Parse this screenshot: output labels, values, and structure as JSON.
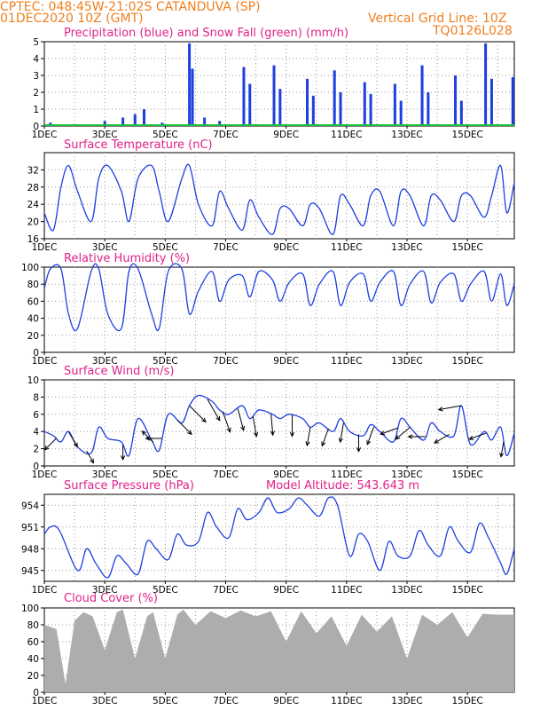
{
  "header": {
    "station_line": "CPTEC:   048:45W-21:02S   CATANDUVA (SP)",
    "run_line": "01DEC2020 10Z (GMT)",
    "grid_note": "Vertical Grid Line: 10Z",
    "model_code": "TQ0126L028",
    "model_altitude": "Model Altitude: 543.643 m"
  },
  "x_axis": {
    "labels": [
      "1DEC",
      "3DEC",
      "5DEC",
      "7DEC",
      "9DEC",
      "11DEC",
      "13DEC",
      "15DEC"
    ],
    "day_start": 1,
    "day_end": 16.55
  },
  "chart_data": [
    {
      "id": "precip",
      "type": "bar",
      "title": "Precipitation (blue) and Snow Fall (green) (mm/h)",
      "ylim": [
        0,
        5
      ],
      "yticks": [
        "0",
        "1",
        "2",
        "3",
        "4",
        "5"
      ],
      "grid": true,
      "colors": {
        "rain": "#1e3fe0",
        "snow": "#1fbf3f"
      },
      "series": [
        {
          "name": "Precipitation",
          "events": [
            {
              "day": 1.2,
              "value": 0.2
            },
            {
              "day": 2.0,
              "value": 0.1
            },
            {
              "day": 2.3,
              "value": 0.1
            },
            {
              "day": 3.0,
              "value": 0.3
            },
            {
              "day": 3.6,
              "value": 0.5
            },
            {
              "day": 4.0,
              "value": 0.7
            },
            {
              "day": 4.3,
              "value": 1.0
            },
            {
              "day": 4.9,
              "value": 0.2
            },
            {
              "day": 5.8,
              "value": 4.9
            },
            {
              "day": 5.9,
              "value": 3.4
            },
            {
              "day": 6.3,
              "value": 0.5
            },
            {
              "day": 6.8,
              "value": 0.3
            },
            {
              "day": 7.6,
              "value": 3.5
            },
            {
              "day": 7.8,
              "value": 2.5
            },
            {
              "day": 8.6,
              "value": 3.6
            },
            {
              "day": 8.8,
              "value": 2.2
            },
            {
              "day": 9.7,
              "value": 2.8
            },
            {
              "day": 9.9,
              "value": 1.8
            },
            {
              "day": 10.6,
              "value": 3.3
            },
            {
              "day": 10.8,
              "value": 2.0
            },
            {
              "day": 11.6,
              "value": 2.6
            },
            {
              "day": 11.8,
              "value": 1.9
            },
            {
              "day": 12.6,
              "value": 2.5
            },
            {
              "day": 12.8,
              "value": 1.5
            },
            {
              "day": 13.5,
              "value": 3.6
            },
            {
              "day": 13.7,
              "value": 2.0
            },
            {
              "day": 14.6,
              "value": 3.0
            },
            {
              "day": 14.8,
              "value": 1.5
            },
            {
              "day": 15.6,
              "value": 4.9
            },
            {
              "day": 15.8,
              "value": 2.8
            },
            {
              "day": 16.5,
              "value": 2.9
            }
          ]
        },
        {
          "name": "Snow Fall",
          "values": [
            0
          ]
        }
      ]
    },
    {
      "id": "temp",
      "type": "line",
      "title": "Surface Temperature (nC)",
      "ylim": [
        16,
        36
      ],
      "yticks": [
        "16",
        "20",
        "24",
        "28",
        "32"
      ],
      "grid": true,
      "colors": {
        "line": "#1e3fe0"
      },
      "series": [
        {
          "name": "Temperature",
          "days": [
            1,
            1.3,
            1.55,
            1.8,
            2.1,
            2.55,
            2.8,
            3.1,
            3.55,
            3.8,
            4.1,
            4.55,
            4.8,
            5.1,
            5.55,
            5.8,
            6.1,
            6.55,
            6.8,
            7.1,
            7.55,
            7.8,
            8.1,
            8.55,
            8.8,
            9.1,
            9.55,
            9.8,
            10.1,
            10.55,
            10.8,
            11.1,
            11.55,
            11.8,
            12.1,
            12.55,
            12.8,
            13.1,
            13.55,
            13.8,
            14.1,
            14.55,
            14.8,
            15.1,
            15.55,
            15.8,
            16.1,
            16.3,
            16.55
          ],
          "values": [
            22,
            18,
            28,
            33,
            27,
            20,
            30,
            33,
            27,
            20,
            30,
            33,
            27,
            20,
            30,
            33,
            24,
            19,
            27,
            23,
            18,
            25,
            21,
            17,
            23,
            23,
            19,
            24,
            23,
            17,
            26,
            24,
            19,
            26,
            27,
            19,
            27,
            26,
            19,
            26,
            25,
            20,
            26,
            26,
            21,
            26,
            33,
            22,
            29
          ]
        }
      ]
    },
    {
      "id": "rh",
      "type": "line",
      "title": "Relative Humidity (%)",
      "ylim": [
        0,
        100
      ],
      "yticks": [
        "0",
        "20",
        "40",
        "60",
        "80",
        "100"
      ],
      "grid": true,
      "colors": {
        "line": "#1e3fe0"
      },
      "series": [
        {
          "name": "Relative Humidity",
          "days": [
            1,
            1.2,
            1.55,
            1.8,
            2.1,
            2.55,
            2.8,
            3.1,
            3.55,
            3.8,
            4.1,
            4.55,
            4.8,
            5.1,
            5.55,
            5.8,
            6.1,
            6.55,
            6.8,
            7.1,
            7.55,
            7.8,
            8.1,
            8.55,
            8.8,
            9.1,
            9.55,
            9.8,
            10.1,
            10.55,
            10.8,
            11.1,
            11.55,
            11.8,
            12.1,
            12.55,
            12.8,
            13.1,
            13.55,
            13.8,
            14.1,
            14.55,
            14.8,
            15.1,
            15.55,
            15.8,
            16.1,
            16.3,
            16.55
          ],
          "values": [
            75,
            98,
            98,
            45,
            28,
            95,
            98,
            45,
            28,
            95,
            98,
            45,
            28,
            95,
            98,
            45,
            72,
            95,
            60,
            85,
            90,
            65,
            95,
            85,
            60,
            82,
            92,
            55,
            80,
            95,
            55,
            82,
            92,
            60,
            82,
            95,
            55,
            80,
            95,
            58,
            82,
            92,
            60,
            80,
            95,
            60,
            92,
            55,
            80
          ]
        }
      ]
    },
    {
      "id": "wind",
      "type": "line",
      "title": "Surface Wind (m/s)",
      "ylim": [
        0,
        10
      ],
      "yticks": [
        "0",
        "2",
        "4",
        "6",
        "8",
        "10"
      ],
      "grid": true,
      "colors": {
        "line": "#1e3fe0",
        "arrows": "#000000"
      },
      "series": [
        {
          "name": "Wind speed",
          "days": [
            1,
            1.3,
            1.55,
            1.8,
            2.1,
            2.55,
            2.8,
            3.1,
            3.55,
            3.8,
            4.1,
            4.55,
            4.8,
            5.1,
            5.55,
            5.8,
            6.1,
            6.55,
            6.8,
            7.1,
            7.55,
            7.8,
            8.1,
            8.55,
            8.8,
            9.1,
            9.55,
            9.8,
            10.1,
            10.55,
            10.8,
            11.1,
            11.55,
            11.8,
            12.1,
            12.55,
            12.8,
            13.1,
            13.55,
            13.8,
            14.1,
            14.55,
            14.8,
            15.1,
            15.55,
            15.8,
            16.1,
            16.3,
            16.55
          ],
          "values": [
            4,
            3.5,
            2.8,
            4,
            2.2,
            1.5,
            4.5,
            3.2,
            2.8,
            1.2,
            5.5,
            3,
            1.8,
            6,
            5,
            7,
            8.2,
            7.5,
            6.5,
            6,
            7,
            5.5,
            6.5,
            6,
            5.5,
            6,
            5.5,
            4.5,
            5,
            4,
            5.5,
            4,
            3.5,
            4.8,
            4,
            2.8,
            5.5,
            4.5,
            3,
            5,
            4,
            3.5,
            7,
            2.5,
            4,
            3,
            4.5,
            1.2,
            3.8
          ]
        }
      ],
      "arrows": [
        {
          "day": 1.4,
          "dir": 225
        },
        {
          "day": 1.8,
          "dir": 300
        },
        {
          "day": 2.4,
          "dir": 300
        },
        {
          "day": 3.6,
          "dir": 270
        },
        {
          "day": 4.6,
          "dir": 135
        },
        {
          "day": 4.9,
          "dir": 180
        },
        {
          "day": 5.4,
          "dir": 315
        },
        {
          "day": 5.8,
          "dir": 315
        },
        {
          "day": 6.4,
          "dir": 300
        },
        {
          "day": 6.9,
          "dir": 290
        },
        {
          "day": 7.4,
          "dir": 285
        },
        {
          "day": 7.9,
          "dir": 280
        },
        {
          "day": 8.5,
          "dir": 275
        },
        {
          "day": 9.2,
          "dir": 270
        },
        {
          "day": 9.8,
          "dir": 260
        },
        {
          "day": 10.4,
          "dir": 250
        },
        {
          "day": 10.9,
          "dir": 260
        },
        {
          "day": 11.4,
          "dir": 270
        },
        {
          "day": 11.9,
          "dir": 250
        },
        {
          "day": 12.7,
          "dir": 200
        },
        {
          "day": 13.1,
          "dir": 220
        },
        {
          "day": 13.6,
          "dir": 180
        },
        {
          "day": 14.4,
          "dir": 210
        },
        {
          "day": 14.8,
          "dir": 190
        },
        {
          "day": 15.6,
          "dir": 200
        },
        {
          "day": 16.2,
          "dir": 260
        }
      ]
    },
    {
      "id": "pres",
      "type": "line",
      "title": "Surface Pressure (hPa)",
      "ylim": [
        943.5,
        955.5
      ],
      "yticks": [
        "945",
        "948",
        "951",
        "954"
      ],
      "grid": true,
      "colors": {
        "line": "#1e3fe0"
      },
      "series": [
        {
          "name": "Surface Pressure",
          "days": [
            1,
            1.2,
            1.5,
            2.1,
            2.4,
            2.7,
            3.1,
            3.4,
            3.7,
            4.1,
            4.4,
            4.7,
            5.1,
            5.4,
            5.7,
            6.1,
            6.4,
            6.7,
            7.1,
            7.4,
            7.7,
            8.1,
            8.4,
            8.7,
            9.1,
            9.4,
            9.7,
            10.1,
            10.4,
            10.7,
            11.1,
            11.4,
            11.7,
            12.1,
            12.4,
            12.7,
            13.1,
            13.4,
            13.7,
            14.1,
            14.4,
            14.7,
            15.1,
            15.4,
            15.7,
            16.1,
            16.3,
            16.55
          ],
          "values": [
            950,
            951,
            950.5,
            945,
            948,
            946,
            944,
            947,
            946,
            944.5,
            949,
            948,
            946.5,
            950,
            948.5,
            949,
            953,
            951,
            949.5,
            953.5,
            952,
            953,
            955,
            953,
            953.5,
            955,
            954,
            952.5,
            955,
            954,
            947,
            950,
            949,
            945,
            949,
            947,
            947,
            950.5,
            948.5,
            947,
            951,
            949,
            947.5,
            951.5,
            949.5,
            946,
            944.5,
            948
          ]
        }
      ]
    },
    {
      "id": "cloud",
      "type": "bar",
      "title": "Cloud Cover (%)",
      "ylim": [
        0,
        100
      ],
      "yticks": [
        "0",
        "20",
        "40",
        "60",
        "80",
        "100"
      ],
      "grid": true,
      "colors": {
        "fill": "#adadad"
      },
      "series": [
        {
          "name": "Cloud Cover",
          "days": [
            1,
            1.4,
            1.7,
            2.0,
            2.3,
            2.6,
            3.0,
            3.4,
            3.6,
            4.0,
            4.4,
            4.6,
            5.0,
            5.4,
            5.6,
            6.0,
            6.5,
            7.0,
            7.5,
            8.0,
            8.5,
            9.0,
            9.5,
            10.0,
            10.5,
            11.0,
            11.5,
            12.0,
            12.5,
            13.0,
            13.5,
            14.0,
            14.5,
            15.0,
            15.5,
            16.0,
            16.55
          ],
          "values": [
            80,
            75,
            10,
            85,
            95,
            90,
            50,
            95,
            98,
            40,
            90,
            95,
            40,
            92,
            98,
            80,
            96,
            88,
            97,
            90,
            96,
            60,
            96,
            70,
            90,
            55,
            92,
            72,
            90,
            40,
            92,
            80,
            95,
            65,
            93,
            92,
            92
          ]
        }
      ]
    }
  ]
}
